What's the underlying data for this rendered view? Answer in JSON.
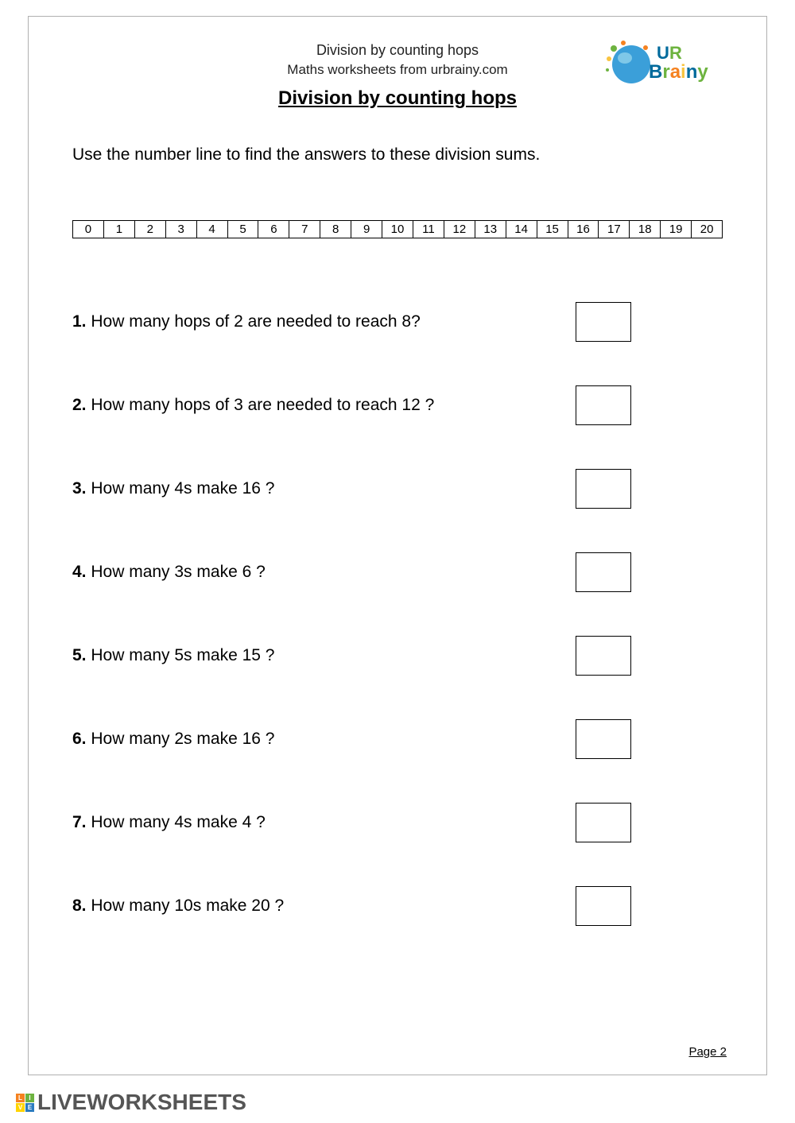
{
  "header": {
    "title": "Division by counting hops",
    "subtitle": "Maths worksheets from urbrainy.com"
  },
  "logo": {
    "text_ur": "UR",
    "text_brainy": "Brainy",
    "colors": {
      "blue": "#3b9fd9",
      "green": "#6db33f",
      "orange": "#f58220",
      "yellow": "#f9c440",
      "lightblue": "#7fc8e8"
    }
  },
  "main_title": "Division by counting hops",
  "instruction": "Use the number line to find the answers to these division sums.",
  "number_line": {
    "start": 0,
    "end": 20,
    "values": [
      "0",
      "1",
      "2",
      "3",
      "4",
      "5",
      "6",
      "7",
      "8",
      "9",
      "10",
      "11",
      "12",
      "13",
      "14",
      "15",
      "16",
      "17",
      "18",
      "19",
      "20"
    ]
  },
  "questions": [
    {
      "num": "1",
      "text": "How many hops of 2 are needed to reach 8?"
    },
    {
      "num": "2",
      "text": "How many hops of 3 are needed to reach 12 ?"
    },
    {
      "num": "3",
      "text": "How many 4s make 16 ?"
    },
    {
      "num": "4",
      "text": "How many 3s make 6 ?"
    },
    {
      "num": "5",
      "text": "How many 5s make 15 ?"
    },
    {
      "num": "6",
      "text": "How many 2s make 16 ?"
    },
    {
      "num": "7",
      "text": "How many 4s make 4  ?"
    },
    {
      "num": "8",
      "text": "How many 10s make 20 ?"
    }
  ],
  "page_number": "Page 2",
  "footer": {
    "brand": "LIVEWORKSHEETS",
    "grid_colors": [
      "#f58220",
      "#6db33f",
      "#ffd400",
      "#2b7bbf"
    ],
    "grid_letters": [
      "L",
      "I",
      "V",
      "E"
    ]
  },
  "answer_box": {
    "border_color": "#000000",
    "background": "#ffffff"
  }
}
